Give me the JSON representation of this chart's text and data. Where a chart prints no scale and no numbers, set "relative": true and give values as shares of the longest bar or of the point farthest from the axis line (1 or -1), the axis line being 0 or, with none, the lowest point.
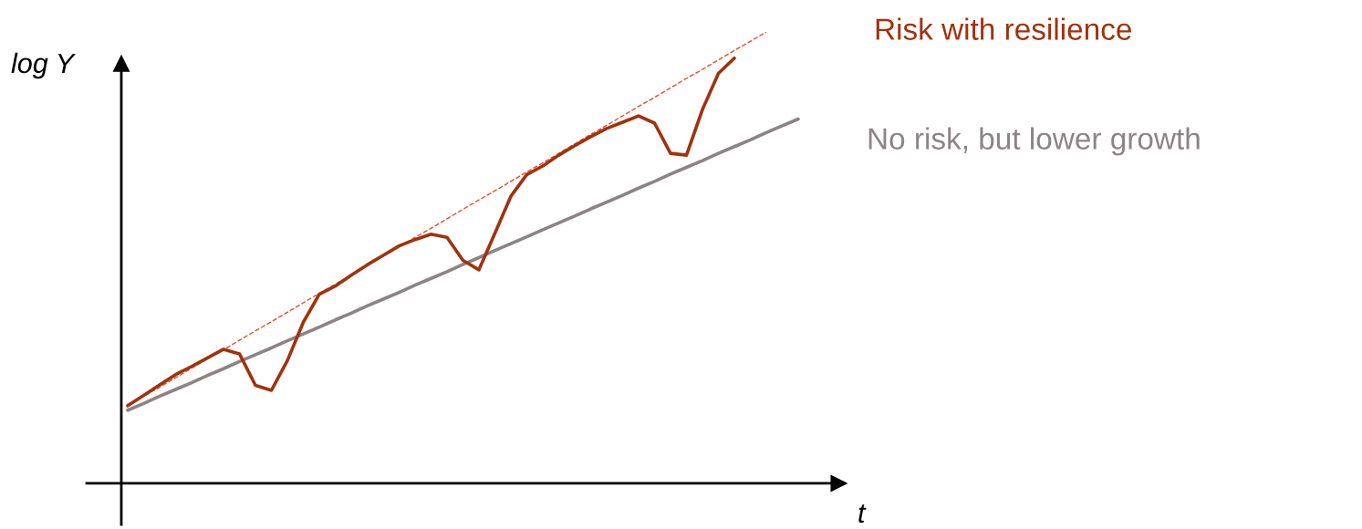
{
  "chart_data": {
    "type": "line",
    "relative": true,
    "xlabel": "t",
    "ylabel": "log Y",
    "categories": [
      null,
      null,
      null,
      null,
      null,
      null,
      null,
      null,
      null,
      null,
      null,
      null,
      null,
      null,
      null,
      null,
      null,
      null,
      null,
      null,
      null,
      null,
      null,
      null,
      null,
      null,
      null,
      null,
      null,
      null,
      null,
      null,
      null,
      null,
      null,
      null,
      null,
      null,
      null,
      null,
      null,
      null,
      null
    ],
    "series": [
      {
        "name": "No risk, but lower growth",
        "color": "#8c8385",
        "line_style": "solid",
        "values": [
          0.162,
          0.177,
          0.193,
          0.208,
          0.223,
          0.239,
          0.254,
          0.27,
          0.285,
          0.3,
          0.316,
          0.331,
          0.346,
          0.362,
          0.377,
          0.393,
          0.408,
          0.423,
          0.439,
          0.454,
          0.469,
          0.485,
          0.5,
          0.516,
          0.531,
          0.546,
          0.562,
          0.577,
          0.592,
          0.608,
          0.623,
          0.638,
          0.654,
          0.669,
          0.685,
          0.7,
          0.715,
          0.731,
          0.746,
          0.761,
          0.777,
          0.792,
          0.807
        ]
      },
      {
        "color": "#e0502a",
        "line_style": "dashed",
        "values": [
          0.172,
          0.193,
          0.213,
          0.234,
          0.255,
          0.276,
          0.296,
          0.317,
          0.338,
          0.358,
          0.379,
          0.4,
          0.421,
          0.441,
          0.462,
          0.483,
          0.503,
          0.524,
          0.545,
          0.565,
          0.586,
          0.607,
          0.628,
          0.648,
          0.669,
          0.69,
          0.71,
          0.731,
          0.752,
          0.773,
          0.793,
          0.814,
          0.835,
          0.855,
          0.876,
          0.897,
          0.917,
          0.938,
          0.959,
          0.979,
          1.0,
          null,
          null
        ]
      },
      {
        "name": "Risk with resilience",
        "color": "#a0320f",
        "line_style": "solid",
        "values": [
          0.172,
          0.195,
          0.218,
          0.241,
          0.259,
          0.278,
          0.297,
          0.287,
          0.217,
          0.206,
          0.272,
          0.357,
          0.419,
          0.437,
          0.461,
          0.484,
          0.505,
          0.526,
          0.54,
          0.552,
          0.545,
          0.494,
          0.473,
          0.554,
          0.636,
          0.684,
          0.703,
          0.727,
          0.748,
          0.768,
          0.786,
          0.8,
          0.814,
          0.798,
          0.731,
          0.727,
          0.828,
          0.908,
          0.942,
          null,
          null,
          null,
          null
        ]
      }
    ]
  }
}
